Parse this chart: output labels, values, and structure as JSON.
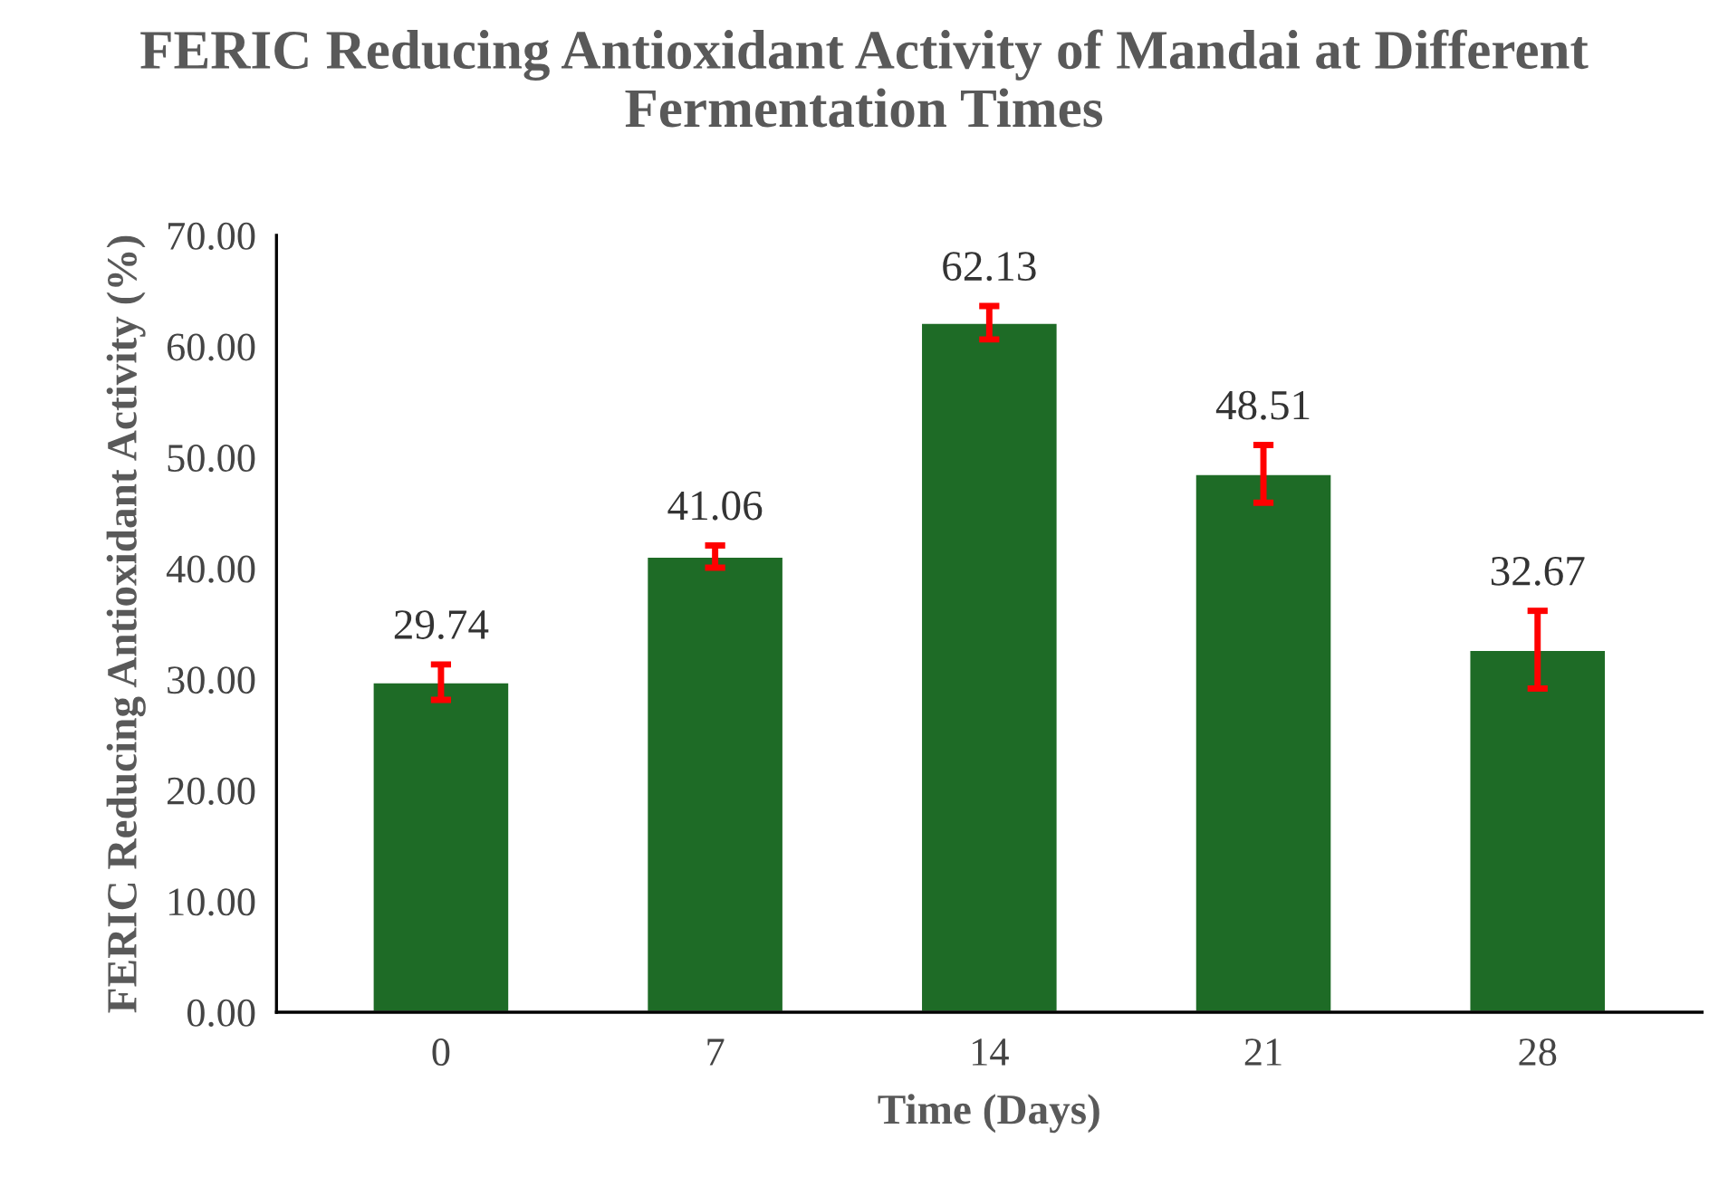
{
  "chart_data": {
    "type": "bar",
    "title": "FERIC Reducing Antioxidant Activity of Mandai at Different Fermentation Times",
    "xlabel": "Time (Days)",
    "ylabel": "FERIC Reducing Antioxidant Activity (%)",
    "categories": [
      "0",
      "7",
      "14",
      "21",
      "28"
    ],
    "values": [
      29.74,
      41.06,
      62.13,
      48.51,
      32.67
    ],
    "errors": [
      1.6,
      1.0,
      1.5,
      2.6,
      3.5
    ],
    "color": "#1e6b26",
    "ylim": [
      0,
      70
    ],
    "yticks": [
      {
        "value": 0,
        "label": "0.00"
      },
      {
        "value": 10,
        "label": "10.00"
      },
      {
        "value": 20,
        "label": "20.00"
      },
      {
        "value": 30,
        "label": "30.00"
      },
      {
        "value": 40,
        "label": "40.00"
      },
      {
        "value": 50,
        "label": "50.00"
      },
      {
        "value": 60,
        "label": "60.00"
      },
      {
        "value": 70,
        "label": "70.00"
      }
    ],
    "data_labels": true,
    "grid": false,
    "legend": false
  }
}
